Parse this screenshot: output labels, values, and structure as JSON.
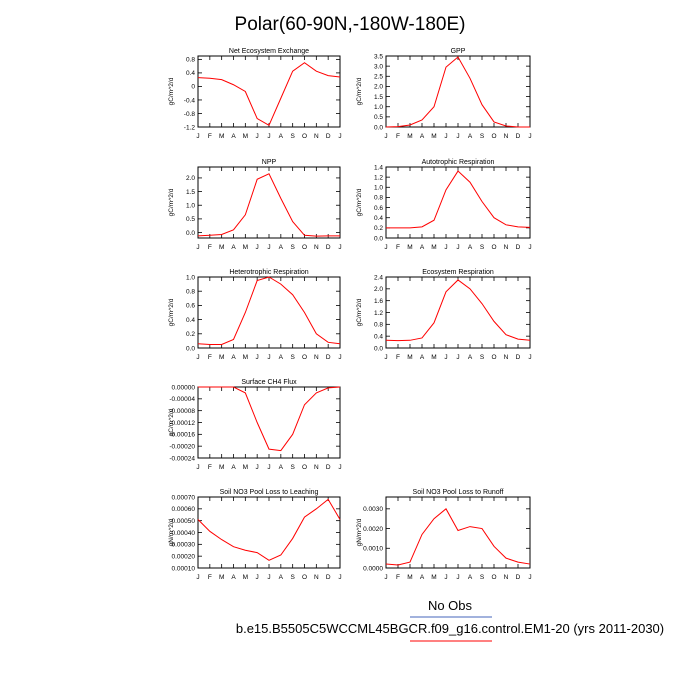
{
  "page": {
    "title": "Polar(60-90N,-180W-180E)",
    "legend": {
      "obs_label": "No Obs",
      "model_label": "b.e15.B5505C5WCCML45BGCR.f09_g16.control.EM1-20 (yrs 2011-2030)"
    },
    "colors": {
      "model": "#ff0000",
      "axis": "#000000",
      "background": "#ffffff"
    }
  },
  "chart_data": [
    {
      "type": "line",
      "title": "Net Ecosystem Exchange",
      "ylabel": "gC/m^2/d",
      "categories": [
        "J",
        "F",
        "M",
        "A",
        "M",
        "J",
        "J",
        "A",
        "S",
        "O",
        "N",
        "D",
        "J"
      ],
      "series": [
        {
          "values": [
            0.26,
            0.24,
            0.2,
            0.05,
            -0.15,
            -0.95,
            -1.15,
            -0.35,
            0.45,
            0.7,
            0.45,
            0.32,
            0.28
          ]
        }
      ],
      "ylim": [
        -1.2,
        0.9
      ],
      "yticks": [
        -1.2,
        -0.8,
        -0.4,
        0,
        0.4,
        0.8
      ],
      "ytick_labels": [
        "-1.2",
        "-0.8",
        "-0.4",
        "0",
        "0.4",
        "0.8"
      ]
    },
    {
      "type": "line",
      "title": "GPP",
      "ylabel": "gC/m^2/d",
      "categories": [
        "J",
        "F",
        "M",
        "A",
        "M",
        "J",
        "J",
        "A",
        "S",
        "O",
        "N",
        "D",
        "J"
      ],
      "series": [
        {
          "values": [
            0.0,
            0.02,
            0.1,
            0.35,
            1.0,
            2.95,
            3.45,
            2.4,
            1.1,
            0.25,
            0.05,
            0.0,
            0.0
          ]
        }
      ],
      "ylim": [
        0,
        3.5
      ],
      "yticks": [
        0,
        0.5,
        1,
        1.5,
        2,
        2.5,
        3,
        3.5
      ],
      "ytick_labels": [
        "0.0",
        "0.5",
        "1.0",
        "1.5",
        "2.0",
        "2.5",
        "3.0",
        "3.5"
      ]
    },
    {
      "type": "line",
      "title": "NPP",
      "ylabel": "gC/m^2/d",
      "categories": [
        "J",
        "F",
        "M",
        "A",
        "M",
        "J",
        "J",
        "A",
        "S",
        "O",
        "N",
        "D",
        "J"
      ],
      "series": [
        {
          "values": [
            -0.12,
            -0.1,
            -0.07,
            0.1,
            0.65,
            1.95,
            2.15,
            1.25,
            0.4,
            -0.1,
            -0.13,
            -0.12,
            -0.12
          ]
        }
      ],
      "ylim": [
        -0.2,
        2.4
      ],
      "yticks": [
        0,
        0.5,
        1,
        1.5,
        2
      ],
      "ytick_labels": [
        "0.0",
        "0.5",
        "1.0",
        "1.5",
        "2.0"
      ]
    },
    {
      "type": "line",
      "title": "Autotrophic Respiration",
      "ylabel": "gC/m^2/d",
      "categories": [
        "J",
        "F",
        "M",
        "A",
        "M",
        "J",
        "J",
        "A",
        "S",
        "O",
        "N",
        "D",
        "J"
      ],
      "series": [
        {
          "values": [
            0.2,
            0.2,
            0.2,
            0.22,
            0.35,
            0.95,
            1.32,
            1.1,
            0.72,
            0.4,
            0.26,
            0.22,
            0.21
          ]
        }
      ],
      "ylim": [
        0,
        1.4
      ],
      "yticks": [
        0,
        0.2,
        0.4,
        0.6,
        0.8,
        1,
        1.2,
        1.4
      ],
      "ytick_labels": [
        "0.0",
        "0.2",
        "0.4",
        "0.6",
        "0.8",
        "1.0",
        "1.2",
        "1.4"
      ]
    },
    {
      "type": "line",
      "title": "Heterotrophic Respiration",
      "ylabel": "gC/m^2/d",
      "categories": [
        "J",
        "F",
        "M",
        "A",
        "M",
        "J",
        "J",
        "A",
        "S",
        "O",
        "N",
        "D",
        "J"
      ],
      "series": [
        {
          "values": [
            0.06,
            0.05,
            0.05,
            0.12,
            0.5,
            0.95,
            1.0,
            0.9,
            0.75,
            0.5,
            0.2,
            0.08,
            0.06
          ]
        }
      ],
      "ylim": [
        0,
        1.0
      ],
      "yticks": [
        0,
        0.2,
        0.4,
        0.6,
        0.8,
        1
      ],
      "ytick_labels": [
        "0.0",
        "0.2",
        "0.4",
        "0.6",
        "0.8",
        "1.0"
      ]
    },
    {
      "type": "line",
      "title": "Ecosystem Respiration",
      "ylabel": "gC/m^2/d",
      "categories": [
        "J",
        "F",
        "M",
        "A",
        "M",
        "J",
        "J",
        "A",
        "S",
        "O",
        "N",
        "D",
        "J"
      ],
      "series": [
        {
          "values": [
            0.26,
            0.25,
            0.26,
            0.34,
            0.85,
            1.9,
            2.3,
            2.0,
            1.5,
            0.9,
            0.45,
            0.3,
            0.26
          ]
        }
      ],
      "ylim": [
        0,
        2.4
      ],
      "yticks": [
        0,
        0.4,
        0.8,
        1.2,
        1.6,
        2,
        2.4
      ],
      "ytick_labels": [
        "0.0",
        "0.4",
        "0.8",
        "1.2",
        "1.6",
        "2.0",
        "2.4"
      ]
    },
    {
      "type": "line",
      "title": "Surface CH4 Flux",
      "ylabel": "gC/m^2/d",
      "categories": [
        "J",
        "F",
        "M",
        "A",
        "M",
        "J",
        "J",
        "A",
        "S",
        "O",
        "N",
        "D",
        "J"
      ],
      "series": [
        {
          "values": [
            0.0,
            0.0,
            0.0,
            0.0,
            -2e-05,
            -0.00012,
            -0.00021,
            -0.000215,
            -0.00016,
            -6e-05,
            -2e-05,
            -3e-06,
            0.0
          ]
        }
      ],
      "ylim": [
        -0.00024,
        0.0
      ],
      "yticks": [
        0,
        -4e-05,
        -8e-05,
        -0.00012,
        -0.00016,
        -0.0002,
        -0.00024
      ],
      "ytick_labels": [
        "0.00000",
        "-0.00004",
        "-0.00008",
        "-0.00012",
        "-0.00016",
        "-0.00020",
        "-0.00024"
      ]
    },
    {
      "type": "line",
      "title": "Soil NO3 Pool Loss to Leaching",
      "ylabel": "gN/m^2/d",
      "categories": [
        "J",
        "F",
        "M",
        "A",
        "M",
        "J",
        "J",
        "A",
        "S",
        "O",
        "N",
        "D",
        "J"
      ],
      "series": [
        {
          "values": [
            0.00051,
            0.00041,
            0.00034,
            0.00028,
            0.00025,
            0.00023,
            0.000165,
            0.00021,
            0.00035,
            0.00053,
            0.0006,
            0.00068,
            0.00051
          ]
        }
      ],
      "ylim": [
        0.0001,
        0.0007
      ],
      "yticks": [
        0.0001,
        0.0002,
        0.0003,
        0.0004,
        0.0005,
        0.0006,
        0.0007
      ],
      "ytick_labels": [
        "0.00010",
        "0.00020",
        "0.00030",
        "0.00040",
        "0.00050",
        "0.00060",
        "0.00070"
      ]
    },
    {
      "type": "line",
      "title": "Soil NO3 Pool Loss to Runoff",
      "ylabel": "gN/m^2/d",
      "categories": [
        "J",
        "F",
        "M",
        "A",
        "M",
        "J",
        "J",
        "A",
        "S",
        "O",
        "N",
        "D",
        "J"
      ],
      "series": [
        {
          "values": [
            0.0002,
            0.00015,
            0.0003,
            0.0017,
            0.0025,
            0.003,
            0.0019,
            0.0021,
            0.002,
            0.0011,
            0.0005,
            0.0003,
            0.0002
          ]
        }
      ],
      "ylim": [
        0,
        0.0036
      ],
      "yticks": [
        0,
        0.001,
        0.002,
        0.003
      ],
      "ytick_labels": [
        "0.0000",
        "0.0010",
        "0.0020",
        "0.0030"
      ]
    }
  ]
}
